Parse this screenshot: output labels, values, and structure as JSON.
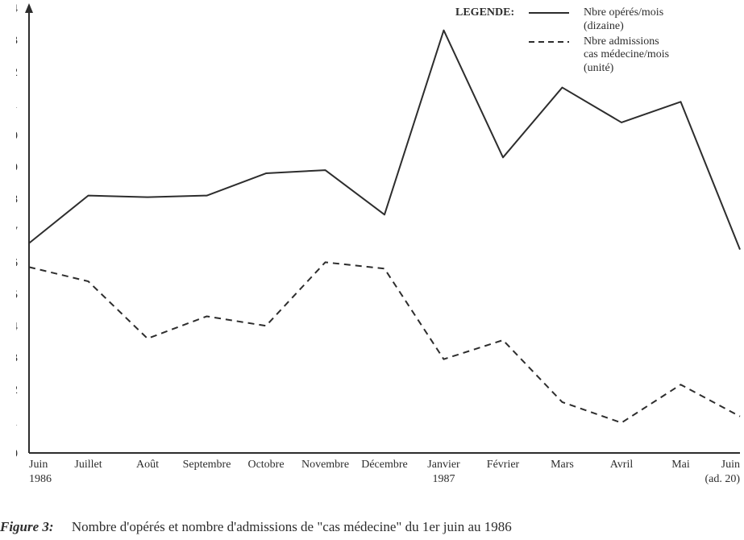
{
  "chart": {
    "type": "line",
    "background_color": "#ffffff",
    "axis_color": "#2d2d2d",
    "axis_stroke_width": 2,
    "y": {
      "min": 0,
      "max": 14,
      "tick_step": 1,
      "tick_fontsize": 15
    },
    "x_labels": [
      "Juin",
      "Juillet",
      "Août",
      "Septembre",
      "Octobre",
      "Novembre",
      "Décembre",
      "Janvier",
      "Février",
      "Mars",
      "Avril",
      "Mai",
      "Juin"
    ],
    "x_tick_fontsize": 14,
    "x_sub_left": "1986",
    "x_sub_mid": "1987",
    "x_sub_right": "(ad. 20)",
    "series_solid": {
      "name": "Nbre opérés/mois (dizaine)",
      "color": "#2d2d2d",
      "stroke_width": 2,
      "values": [
        6.6,
        8.1,
        8.05,
        8.1,
        8.8,
        8.9,
        7.5,
        13.3,
        9.3,
        11.5,
        10.4,
        11.05,
        6.4
      ]
    },
    "series_dashed": {
      "name": "Nbre admissions cas médecine/mois (unité)",
      "color": "#2d2d2d",
      "stroke_width": 2,
      "dash": "8 6",
      "values": [
        5.85,
        5.4,
        3.6,
        4.3,
        4.0,
        6.0,
        5.8,
        2.95,
        3.55,
        1.6,
        0.95,
        2.15,
        1.15
      ]
    }
  },
  "legend": {
    "title": "LEGENDE:",
    "item1_line1": "Nbre opérés/mois",
    "item1_line2": "(dizaine)",
    "item2_line1": "Nbre admissions",
    "item2_line2": "cas médecine/mois",
    "item2_line3": "(unité)"
  },
  "caption": {
    "label": "Figure 3:",
    "text": "Nombre d'opérés et nombre d'admissions de \"cas médecine\" du 1er juin au 1986"
  }
}
